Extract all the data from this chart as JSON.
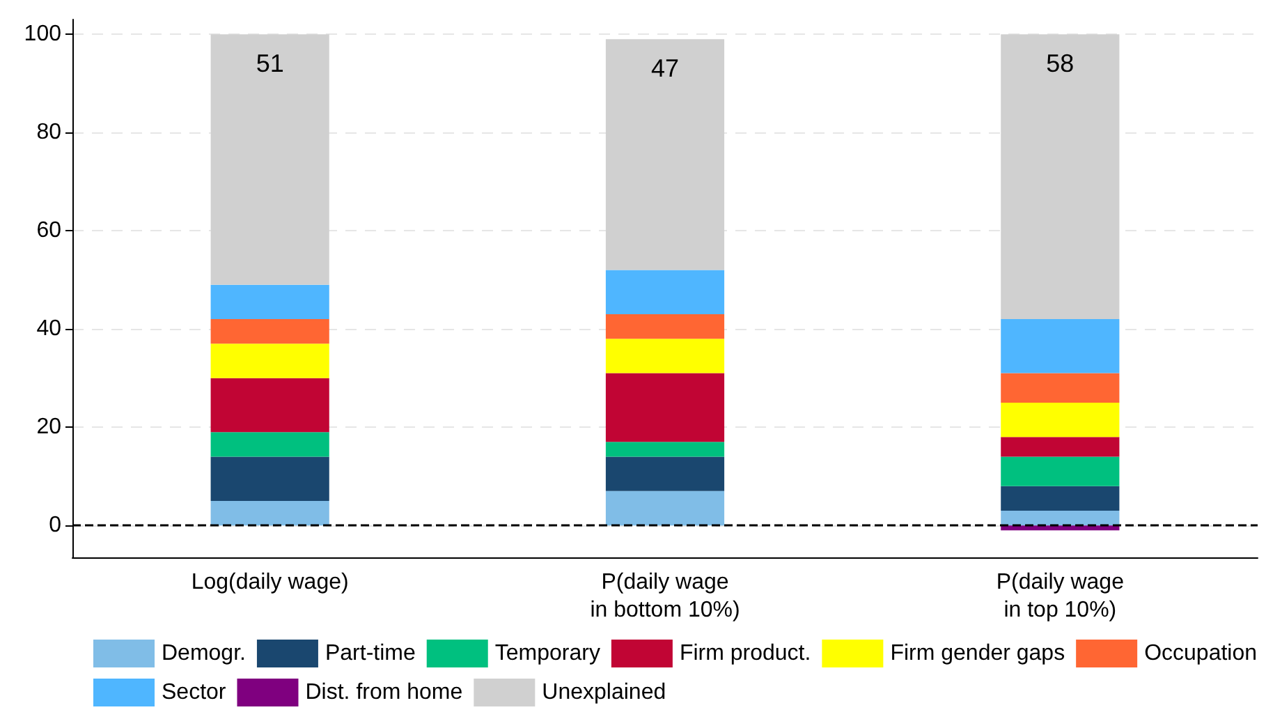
{
  "chart_data": {
    "type": "bar",
    "stacked": true,
    "categories": [
      "Log(daily wage)",
      "P(daily wage\nin bottom 10%)",
      "P(daily wage\nin top 10%)"
    ],
    "series": [
      {
        "name": "Demogr.",
        "color": "#80bde7",
        "values": [
          5,
          7,
          3
        ]
      },
      {
        "name": "Part-time",
        "color": "#1a476f",
        "values": [
          9,
          7,
          5
        ]
      },
      {
        "name": "Temporary",
        "color": "#00c07f",
        "values": [
          5,
          3,
          6
        ]
      },
      {
        "name": "Firm product.",
        "color": "#c10534",
        "values": [
          11,
          14,
          4
        ]
      },
      {
        "name": "Firm gender gaps",
        "color": "#ffff00",
        "values": [
          7,
          7,
          7
        ]
      },
      {
        "name": "Occupation",
        "color": "#ff6633",
        "values": [
          5,
          5,
          6
        ]
      },
      {
        "name": "Sector",
        "color": "#4fb6ff",
        "values": [
          7,
          9,
          11
        ]
      },
      {
        "name": "Dist. from home",
        "color": "#7f007f",
        "values": [
          0,
          0,
          -1
        ]
      },
      {
        "name": "Unexplained",
        "color": "#d0d0d0",
        "values": [
          51,
          47,
          58
        ],
        "value_labels": [
          "51",
          "47",
          "58"
        ]
      }
    ],
    "ylim": [
      -6.5,
      103
    ],
    "yticks": [
      0,
      20,
      40,
      60,
      80,
      100
    ],
    "grid": "y",
    "legend": "bottom",
    "ref_lines": [
      {
        "axis": "y",
        "value": 0,
        "color": "#000000",
        "line_style": "dashed"
      }
    ]
  }
}
